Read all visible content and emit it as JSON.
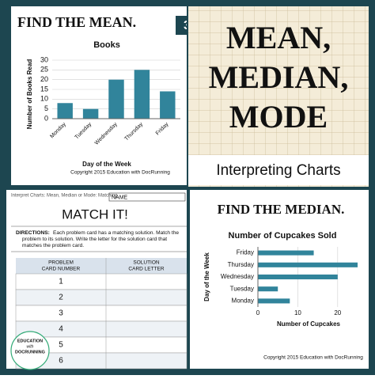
{
  "chart_data": [
    {
      "type": "bar",
      "heading": "FIND THE MEAN.",
      "card_number": "3",
      "title": "Books",
      "categories": [
        "Monday",
        "Tuesday",
        "Wednesday",
        "Thursday",
        "Friday"
      ],
      "values": [
        8,
        5,
        20,
        25,
        14
      ],
      "color": "#31849b",
      "ylim": [
        0,
        30
      ],
      "yticks": [
        0,
        5,
        10,
        15,
        20,
        25,
        30
      ],
      "y_label": "Number of Books Read",
      "x_label": "Day of the Week",
      "footer": "Copyright 2015 Education with DocRunning"
    },
    {
      "type": "hbar",
      "heading": "FIND THE MEDIAN.",
      "title": "Number of Cupcakes Sold",
      "categories": [
        "Monday",
        "Tuesday",
        "Wednesday",
        "Thursday",
        "Friday"
      ],
      "values": [
        8,
        5,
        20,
        25,
        14
      ],
      "color": "#31849b",
      "xlim": [
        0,
        25
      ],
      "xticks": [
        0,
        10,
        20
      ],
      "y_label": "Day of the Week",
      "x_label": "Number of Cupcakes",
      "footer": "Copyright 2015 Education with DocRunning"
    }
  ],
  "cover": {
    "lines": [
      "MEAN,",
      "MEDIAN,",
      "MODE"
    ],
    "subtitle": "Interpreting Charts"
  },
  "worksheet": {
    "header": "Interpret Charts:  Mean, Median or Mode:  Matching",
    "name": "NAME",
    "title": "MATCH IT!",
    "directions_label": "DIRECTIONS:",
    "directions": [
      "Each problem card has a matching solution.  Match the",
      "problem to its solution.  Write the letter for the solution card that",
      "matches the problem card."
    ],
    "table": {
      "headers": [
        [
          "PROBLEM",
          "CARD NUMBER"
        ],
        [
          "SOLUTION",
          "CARD LETTER"
        ]
      ],
      "rows": [
        "1",
        "2",
        "3",
        "4",
        "5",
        "6"
      ]
    },
    "logo": [
      "EDUCATION",
      "with",
      "DOCRUNNING"
    ]
  }
}
